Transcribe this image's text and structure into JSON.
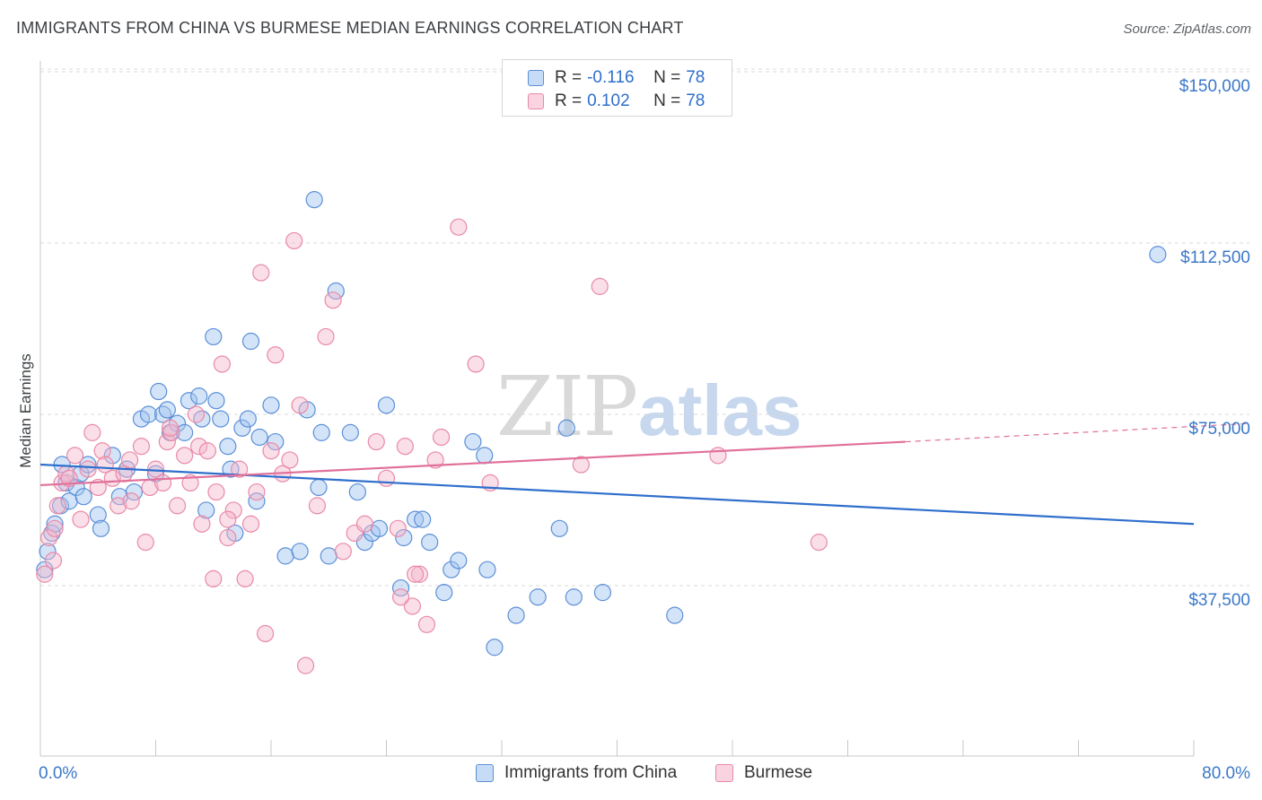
{
  "header": {
    "title": "IMMIGRANTS FROM CHINA VS BURMESE MEDIAN EARNINGS CORRELATION CHART",
    "source": "Source: ZipAtlas.com"
  },
  "watermark": {
    "zip": "ZIP",
    "atlas": "atlas"
  },
  "colors": {
    "china": "#5b8fd8",
    "china_fill": "rgba(160,196,240,0.45)",
    "china_line": "#2f6fcc",
    "burmese": "#e98aa8",
    "burmese_fill": "rgba(245,182,204,0.45)",
    "burmese_line": "#e0709a",
    "axis_text": "#3b78c9",
    "grid": "#d9d9d9"
  },
  "legend_top": {
    "rows": [
      {
        "r_label": "R =",
        "r_value": "-0.116",
        "n_label": "N =",
        "n_value": "78"
      },
      {
        "r_label": "R =",
        "r_value": "0.102",
        "n_label": "N =",
        "n_value": "78"
      }
    ]
  },
  "legend_bottom": {
    "series1": "Immigrants from China",
    "series2": "Burmese"
  },
  "chart_data": {
    "type": "scatter",
    "title": "IMMIGRANTS FROM CHINA VS BURMESE MEDIAN EARNINGS CORRELATION CHART",
    "xlabel": "",
    "ylabel": "Median Earnings",
    "xlim": [
      0,
      80
    ],
    "ylim": [
      10000,
      155000
    ],
    "x_tick_labels": [
      "0.0%",
      "80.0%"
    ],
    "y_ticks": [
      37500,
      75000,
      112500,
      150000
    ],
    "y_tick_labels": [
      "$37,500",
      "$75,000",
      "$112,500",
      "$150,000"
    ],
    "grid": "horizontal dashed",
    "legend_position": "top-center",
    "series": [
      {
        "name": "Immigrants from China",
        "r": -0.116,
        "n": 78,
        "trend": {
          "x": [
            0,
            80
          ],
          "y": [
            64000,
            51000
          ]
        },
        "points": [
          [
            0.5,
            45000
          ],
          [
            0.8,
            49000
          ],
          [
            1.0,
            51000
          ],
          [
            1.4,
            55000
          ],
          [
            1.8,
            60000
          ],
          [
            2.0,
            56000
          ],
          [
            2.5,
            59000
          ],
          [
            2.8,
            62000
          ],
          [
            3.0,
            57000
          ],
          [
            3.3,
            64000
          ],
          [
            4.0,
            53000
          ],
          [
            4.2,
            50000
          ],
          [
            5.0,
            66000
          ],
          [
            5.5,
            57000
          ],
          [
            6.0,
            63000
          ],
          [
            6.5,
            58000
          ],
          [
            7.0,
            74000
          ],
          [
            7.5,
            75000
          ],
          [
            8.0,
            62000
          ],
          [
            8.2,
            80000
          ],
          [
            8.5,
            75000
          ],
          [
            8.8,
            76000
          ],
          [
            9.0,
            71000
          ],
          [
            9.5,
            73000
          ],
          [
            10.0,
            71000
          ],
          [
            10.3,
            78000
          ],
          [
            11.0,
            79000
          ],
          [
            11.2,
            74000
          ],
          [
            11.5,
            54000
          ],
          [
            12.0,
            92000
          ],
          [
            12.2,
            78000
          ],
          [
            12.5,
            74000
          ],
          [
            13.0,
            68000
          ],
          [
            13.2,
            63000
          ],
          [
            13.5,
            49000
          ],
          [
            14.0,
            72000
          ],
          [
            14.4,
            74000
          ],
          [
            14.6,
            91000
          ],
          [
            15.0,
            56000
          ],
          [
            15.2,
            70000
          ],
          [
            16.0,
            77000
          ],
          [
            16.3,
            69000
          ],
          [
            17.0,
            44000
          ],
          [
            18.0,
            45000
          ],
          [
            18.5,
            76000
          ],
          [
            19.0,
            122000
          ],
          [
            19.3,
            59000
          ],
          [
            19.5,
            71000
          ],
          [
            20.0,
            44000
          ],
          [
            20.5,
            102000
          ],
          [
            21.5,
            71000
          ],
          [
            22.0,
            58000
          ],
          [
            22.5,
            47000
          ],
          [
            23.0,
            49000
          ],
          [
            23.5,
            50000
          ],
          [
            24.0,
            77000
          ],
          [
            25.0,
            37000
          ],
          [
            25.2,
            48000
          ],
          [
            26.0,
            52000
          ],
          [
            26.5,
            52000
          ],
          [
            27.0,
            47000
          ],
          [
            28.0,
            36000
          ],
          [
            28.5,
            41000
          ],
          [
            29.0,
            43000
          ],
          [
            30.0,
            69000
          ],
          [
            30.8,
            66000
          ],
          [
            31.0,
            41000
          ],
          [
            31.5,
            24000
          ],
          [
            33.0,
            31000
          ],
          [
            34.5,
            35000
          ],
          [
            36.0,
            50000
          ],
          [
            36.5,
            72000
          ],
          [
            37.0,
            35000
          ],
          [
            39.0,
            36000
          ],
          [
            44.0,
            31000
          ],
          [
            77.5,
            110000
          ],
          [
            0.3,
            41000
          ],
          [
            1.5,
            64000
          ]
        ]
      },
      {
        "name": "Burmese",
        "r": 0.102,
        "n": 78,
        "trend": {
          "x": [
            0,
            60,
            80
          ],
          "y": [
            59500,
            69000,
            73000
          ]
        },
        "points": [
          [
            0.3,
            40000
          ],
          [
            0.6,
            48000
          ],
          [
            1.0,
            50000
          ],
          [
            1.2,
            55000
          ],
          [
            1.5,
            60000
          ],
          [
            1.8,
            62000
          ],
          [
            2.0,
            61000
          ],
          [
            2.4,
            66000
          ],
          [
            2.8,
            52000
          ],
          [
            3.3,
            63000
          ],
          [
            3.6,
            71000
          ],
          [
            4.0,
            59000
          ],
          [
            4.3,
            67000
          ],
          [
            4.5,
            64000
          ],
          [
            5.0,
            61000
          ],
          [
            5.4,
            55000
          ],
          [
            5.8,
            62000
          ],
          [
            6.2,
            65000
          ],
          [
            7.0,
            68000
          ],
          [
            7.3,
            47000
          ],
          [
            7.6,
            59000
          ],
          [
            8.0,
            63000
          ],
          [
            8.5,
            60000
          ],
          [
            8.8,
            69000
          ],
          [
            9.1,
            71000
          ],
          [
            9.5,
            55000
          ],
          [
            10.0,
            66000
          ],
          [
            10.4,
            60000
          ],
          [
            10.8,
            75000
          ],
          [
            11.0,
            68000
          ],
          [
            11.2,
            51000
          ],
          [
            11.6,
            67000
          ],
          [
            12.0,
            39000
          ],
          [
            12.2,
            58000
          ],
          [
            12.6,
            86000
          ],
          [
            13.0,
            48000
          ],
          [
            13.4,
            54000
          ],
          [
            13.8,
            63000
          ],
          [
            14.2,
            39000
          ],
          [
            14.6,
            51000
          ],
          [
            15.0,
            58000
          ],
          [
            15.3,
            106000
          ],
          [
            15.6,
            27000
          ],
          [
            16.0,
            67000
          ],
          [
            16.3,
            88000
          ],
          [
            16.8,
            62000
          ],
          [
            17.3,
            65000
          ],
          [
            17.6,
            113000
          ],
          [
            18.0,
            77000
          ],
          [
            18.4,
            20000
          ],
          [
            19.2,
            55000
          ],
          [
            19.8,
            92000
          ],
          [
            20.3,
            100000
          ],
          [
            21.0,
            45000
          ],
          [
            21.8,
            49000
          ],
          [
            22.5,
            51000
          ],
          [
            23.3,
            69000
          ],
          [
            24.0,
            61000
          ],
          [
            24.8,
            50000
          ],
          [
            25.3,
            68000
          ],
          [
            25.8,
            33000
          ],
          [
            26.3,
            40000
          ],
          [
            26.8,
            29000
          ],
          [
            27.4,
            65000
          ],
          [
            27.8,
            70000
          ],
          [
            29.0,
            116000
          ],
          [
            30.2,
            86000
          ],
          [
            31.2,
            60000
          ],
          [
            37.5,
            64000
          ],
          [
            38.8,
            103000
          ],
          [
            47.0,
            66000
          ],
          [
            54.0,
            47000
          ],
          [
            25.0,
            35000
          ],
          [
            26.0,
            40000
          ],
          [
            13.0,
            52000
          ],
          [
            6.3,
            56000
          ],
          [
            9.0,
            72000
          ],
          [
            0.9,
            43000
          ]
        ]
      }
    ]
  },
  "axes": {
    "ylabel": "Median Earnings",
    "x_min_label": "0.0%",
    "x_max_label": "80.0%",
    "y_tick_labels": [
      "$150,000",
      "$112,500",
      "$75,000",
      "$37,500"
    ]
  }
}
